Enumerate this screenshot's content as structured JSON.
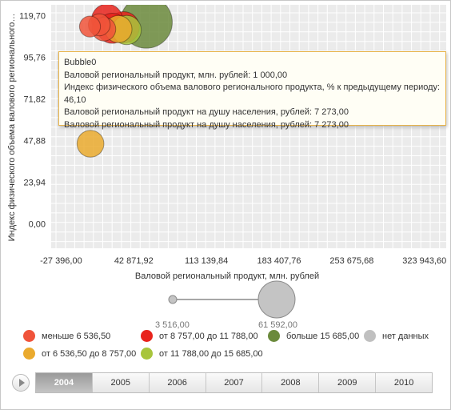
{
  "chart_data": {
    "type": "scatter",
    "xlabel": "Валовой региональный продукт, млн. рублей",
    "ylabel": "Индекс физического объема валового регионального…",
    "x_ticks": [
      "-27 396,00",
      "42 871,92",
      "113 139,84",
      "183 407,76",
      "253 675,68",
      "323 943,60"
    ],
    "x_tick_values": [
      -27396,
      42871.92,
      113139.84,
      183407.76,
      253675.68,
      323943.6
    ],
    "y_ticks": [
      "0,00",
      "23,94",
      "47,88",
      "71,82",
      "95,76",
      "119,70"
    ],
    "y_tick_values": [
      0,
      23.94,
      47.88,
      71.82,
      95.76,
      119.7
    ],
    "xlim": [
      -37000,
      345000
    ],
    "ylim": [
      -14,
      126
    ],
    "grid": true,
    "points": [
      {
        "x": 500,
        "y": 113.5,
        "size": 3700,
        "group": "lt6536"
      },
      {
        "x": 9500,
        "y": 114.5,
        "size": 4200,
        "group": "lt6536"
      },
      {
        "x": 17000,
        "y": 117.5,
        "size": 10500,
        "group": "8757to11788"
      },
      {
        "x": 22000,
        "y": 112.5,
        "size": 9800,
        "group": "8757to11788"
      },
      {
        "x": 14000,
        "y": 112.0,
        "size": 5200,
        "group": "lt6536"
      },
      {
        "x": 28000,
        "y": 112.0,
        "size": 7500,
        "group": "6536to8757"
      },
      {
        "x": 36000,
        "y": 111.5,
        "size": 9000,
        "group": "11788to15685"
      },
      {
        "x": 33000,
        "y": 113.0,
        "size": 11000,
        "group": "8757to11788"
      },
      {
        "x": 55000,
        "y": 116.0,
        "size": 36000,
        "group": "gt15685"
      },
      {
        "x": 1000,
        "y": 46.1,
        "size": 7273,
        "group": "6536to8757"
      }
    ],
    "size_legend": {
      "min_label": "3 516,00",
      "max_label": "61 592,00"
    },
    "color_legend": [
      {
        "key": "lt6536",
        "label": "меньше 6 536,50",
        "color": "#f0533a"
      },
      {
        "key": "8757to11788",
        "label": "от 8 757,00 до 11 788,00",
        "color": "#e8231c"
      },
      {
        "key": "gt15685",
        "label": "больше 15 685,00",
        "color": "#6b8a3c"
      },
      {
        "key": "nodata",
        "label": "нет данных",
        "color": "#c0c0c0"
      },
      {
        "key": "6536to8757",
        "label": "от 6 536,50 до 8 757,00",
        "color": "#eaaa2e"
      },
      {
        "key": "11788to15685",
        "label": "от 11 788,00 до 15 685,00",
        "color": "#a8c53c"
      }
    ]
  },
  "tooltip": {
    "line1": "Bubble0",
    "line2": "Валовой региональный продукт, млн. рублей: 1 000,00",
    "line3": "Индекс физического объема валового регионального продукта, % к предыдущему периоду:",
    "line4": "46,10",
    "line5": "Валовой региональный продукт на душу населения, рублей: 7 273,00",
    "line6": "Валовой региональный продукт на душу населения, рублей: 7 273,00"
  },
  "timeline": {
    "years": [
      "2004",
      "2005",
      "2006",
      "2007",
      "2008",
      "2009",
      "2010"
    ],
    "active_index": 0
  },
  "colors": {
    "plot_bg": "#ebebeb",
    "grid": "#ffffff",
    "bubble_stroke_alpha": 0.35
  }
}
